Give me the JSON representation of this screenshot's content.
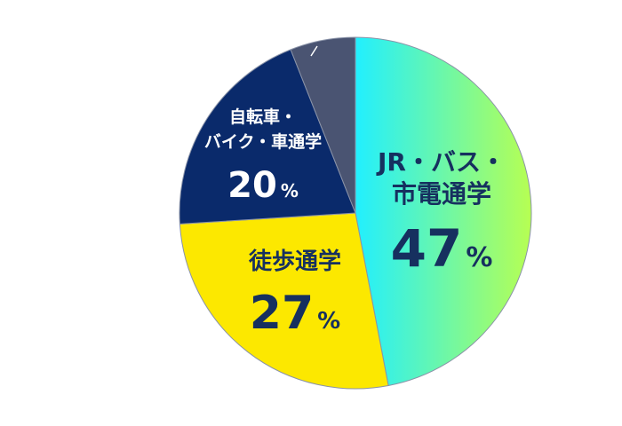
{
  "chart_data": {
    "type": "pie",
    "start": "top",
    "direction": "clockwise",
    "slices": [
      {
        "name_lines": [
          "JR・バス・",
          "市電通学"
        ],
        "value": 47,
        "unit": "%",
        "color_from": "#21efff",
        "color_to": "#b7ff52",
        "text_color": "#16305f"
      },
      {
        "name_lines": [
          "徒歩通学"
        ],
        "value": 27,
        "unit": "%",
        "color": "#fce800",
        "text_color": "#16305f"
      },
      {
        "name_lines": [
          "自転車・",
          "バイク・車通学"
        ],
        "value": 20,
        "unit": "%",
        "color": "#0a2a6b",
        "text_color": "#ffffff"
      },
      {
        "name_lines": [],
        "value": 6,
        "unit": "",
        "color": "#4a5472",
        "text_color": "#ffffff"
      }
    ]
  }
}
